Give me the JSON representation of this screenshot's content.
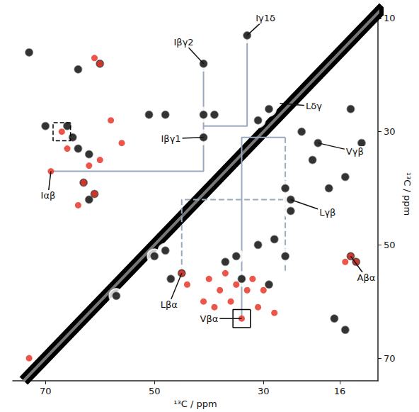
{
  "chart_data": {
    "type": "scatter",
    "x_label": "¹³C / ppm",
    "y_label": "¹³C / ppm",
    "xlim": [
      76,
      9
    ],
    "xticks": [
      70,
      50,
      30,
      16
    ],
    "ylim": [
      74,
      8
    ],
    "yticks": [
      10,
      30,
      50,
      70
    ],
    "grid": false,
    "series": [
      {
        "type": "line",
        "color": "#000000",
        "points": [
          [
            74,
            74
          ],
          [
            8,
            8
          ]
        ]
      },
      {
        "type": "scatter",
        "color": "#000000",
        "marker": "contour",
        "points": [
          [
            60,
            18
          ],
          [
            64,
            19
          ],
          [
            70,
            29
          ],
          [
            66,
            29
          ],
          [
            64,
            33
          ],
          [
            65,
            31
          ],
          [
            62,
            34
          ],
          [
            63,
            39
          ],
          [
            61,
            41
          ],
          [
            62,
            42
          ],
          [
            51,
            27
          ],
          [
            48,
            27
          ],
          [
            41,
            27
          ],
          [
            39,
            27
          ],
          [
            41,
            18
          ],
          [
            33,
            13
          ],
          [
            41,
            31
          ],
          [
            31,
            28
          ],
          [
            29,
            26
          ],
          [
            23,
            30
          ],
          [
            20,
            32
          ],
          [
            21,
            35
          ],
          [
            14,
            26
          ],
          [
            12,
            32
          ],
          [
            15,
            38
          ],
          [
            18,
            40
          ],
          [
            25,
            42
          ],
          [
            25,
            44
          ],
          [
            26,
            40
          ],
          [
            14,
            52
          ],
          [
            13,
            53
          ],
          [
            45,
            55
          ],
          [
            47,
            56
          ],
          [
            35,
            52
          ],
          [
            31,
            50
          ],
          [
            28,
            49
          ],
          [
            26,
            52
          ],
          [
            34,
            56
          ],
          [
            29,
            57
          ],
          [
            37,
            53
          ],
          [
            17,
            63
          ],
          [
            15,
            65
          ],
          [
            50,
            52
          ],
          [
            48,
            51
          ],
          [
            73,
            16
          ],
          [
            57,
            59
          ]
        ]
      },
      {
        "type": "scatter",
        "color": "#e8372a",
        "marker": "circle",
        "points": [
          [
            60,
            18
          ],
          [
            61,
            17
          ],
          [
            67,
            30
          ],
          [
            66,
            33
          ],
          [
            69,
            37
          ],
          [
            62,
            36
          ],
          [
            63,
            39
          ],
          [
            61,
            41
          ],
          [
            60,
            35
          ],
          [
            64,
            43
          ],
          [
            45,
            55
          ],
          [
            44,
            57
          ],
          [
            40,
            56
          ],
          [
            38,
            58
          ],
          [
            37,
            55
          ],
          [
            35,
            57
          ],
          [
            33,
            58
          ],
          [
            36,
            60
          ],
          [
            39,
            61
          ],
          [
            41,
            60
          ],
          [
            34,
            63
          ],
          [
            31,
            61
          ],
          [
            30,
            58
          ],
          [
            28,
            62
          ],
          [
            32,
            56
          ],
          [
            14,
            52
          ],
          [
            13,
            53
          ],
          [
            15,
            53
          ],
          [
            73,
            70
          ],
          [
            58,
            28
          ],
          [
            56,
            32
          ]
        ]
      }
    ],
    "guides": [
      {
        "line_style": "solid",
        "color": "#9aa9bd",
        "points": [
          [
            69,
            37
          ],
          [
            41,
            37
          ],
          [
            41,
            18
          ]
        ]
      },
      {
        "line_style": "solid",
        "color": "#9aa9bd",
        "points": [
          [
            41,
            29
          ],
          [
            33,
            29
          ],
          [
            33,
            13
          ]
        ]
      },
      {
        "line_style": "solid",
        "color": "#9aa9bd",
        "points": [
          [
            34,
            63
          ],
          [
            34,
            31
          ],
          [
            26,
            31
          ]
        ]
      },
      {
        "line_style": "dashed",
        "color": "#9aa9bd",
        "points": [
          [
            45,
            55
          ],
          [
            45,
            42
          ],
          [
            25,
            42
          ]
        ]
      },
      {
        "line_style": "dashed",
        "color": "#9aa9bd",
        "points": [
          [
            26,
            31
          ],
          [
            26,
            55
          ]
        ]
      }
    ],
    "boxes": [
      {
        "line_style": "dashed",
        "color": "#000000",
        "at": [
          67,
          30
        ]
      },
      {
        "line_style": "solid",
        "color": "#000000",
        "at": [
          34,
          63
        ]
      }
    ],
    "annotations": [
      {
        "text": "Iβγ2",
        "at": [
          41,
          18
        ]
      },
      {
        "text": "Iγ1δ",
        "at": [
          33,
          13
        ]
      },
      {
        "text": "Lδγ",
        "at": [
          27,
          25
        ]
      },
      {
        "text": "Iβγ1",
        "at": [
          41,
          31
        ]
      },
      {
        "text": "Vγβ",
        "at": [
          20,
          32
        ]
      },
      {
        "text": "Iαβ",
        "at": [
          69,
          37
        ]
      },
      {
        "text": "Lγβ",
        "at": [
          25,
          42
        ]
      },
      {
        "text": "Aβα",
        "at": [
          14,
          52
        ]
      },
      {
        "text": "Lβα",
        "at": [
          45,
          55
        ]
      },
      {
        "text": "Vβα",
        "at": [
          34,
          63
        ]
      }
    ]
  }
}
